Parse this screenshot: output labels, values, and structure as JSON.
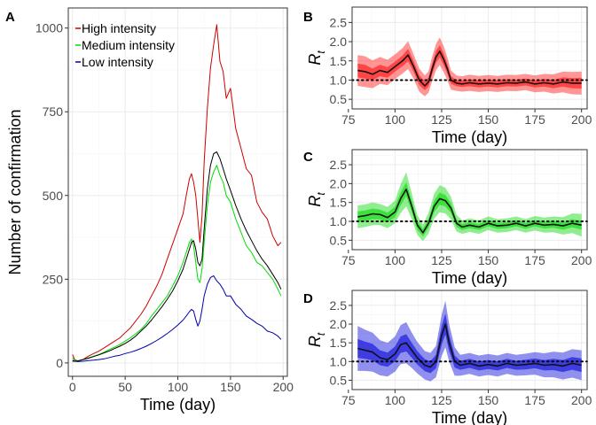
{
  "chart_data": [
    {
      "panel": "A",
      "type": "line",
      "xlabel": "Time (day)",
      "ylabel": "Number of confirmation",
      "xlim": [
        -4,
        204
      ],
      "ylim": [
        -40,
        1060
      ],
      "xticks": [
        0,
        50,
        100,
        150,
        200
      ],
      "yticks": [
        0,
        250,
        500,
        750,
        1000
      ],
      "grid": true,
      "legend_position": "top-left",
      "series": [
        {
          "name": "High intensity",
          "color": "#cc0000",
          "x": [
            0,
            2,
            5,
            10,
            15,
            20,
            25,
            30,
            35,
            40,
            45,
            50,
            55,
            60,
            65,
            70,
            75,
            80,
            85,
            90,
            95,
            100,
            105,
            108,
            111,
            113,
            115,
            117,
            119,
            121,
            123,
            125,
            128,
            131,
            134,
            137,
            140,
            143,
            146,
            150,
            155,
            160,
            165,
            170,
            175,
            180,
            185,
            190,
            195,
            198
          ],
          "values": [
            25,
            10,
            6,
            10,
            20,
            28,
            35,
            45,
            55,
            65,
            75,
            90,
            105,
            125,
            145,
            170,
            200,
            230,
            265,
            310,
            355,
            400,
            445,
            500,
            550,
            565,
            540,
            500,
            430,
            360,
            440,
            600,
            760,
            880,
            950,
            1010,
            900,
            870,
            790,
            820,
            700,
            640,
            580,
            560,
            480,
            450,
            430,
            380,
            350,
            360
          ]
        },
        {
          "name": "Medium intensity",
          "color": "#00dd00",
          "x": [
            0,
            2,
            5,
            10,
            15,
            20,
            25,
            30,
            35,
            40,
            45,
            50,
            55,
            60,
            65,
            70,
            75,
            80,
            85,
            90,
            95,
            100,
            105,
            108,
            111,
            113,
            115,
            117,
            119,
            121,
            123,
            125,
            128,
            131,
            134,
            137,
            140,
            143,
            146,
            150,
            155,
            160,
            165,
            170,
            175,
            180,
            185,
            190,
            195,
            198
          ],
          "values": [
            15,
            8,
            6,
            10,
            15,
            20,
            25,
            32,
            40,
            47,
            55,
            65,
            75,
            87,
            100,
            117,
            140,
            160,
            180,
            200,
            230,
            260,
            300,
            330,
            360,
            370,
            350,
            300,
            250,
            240,
            280,
            360,
            470,
            540,
            570,
            590,
            560,
            540,
            500,
            480,
            430,
            390,
            350,
            330,
            300,
            290,
            270,
            250,
            220,
            200
          ]
        },
        {
          "name": "Low intensity",
          "color": "#0000aa",
          "x": [
            0,
            2,
            5,
            10,
            15,
            20,
            25,
            30,
            35,
            40,
            45,
            50,
            55,
            60,
            65,
            70,
            75,
            80,
            85,
            90,
            95,
            100,
            105,
            108,
            111,
            113,
            115,
            117,
            119,
            121,
            123,
            125,
            128,
            131,
            134,
            137,
            140,
            143,
            146,
            150,
            155,
            160,
            165,
            170,
            175,
            180,
            185,
            190,
            195,
            198
          ],
          "values": [
            8,
            5,
            4,
            5,
            7,
            8,
            10,
            12,
            16,
            20,
            23,
            28,
            32,
            37,
            43,
            50,
            58,
            67,
            77,
            88,
            100,
            113,
            128,
            140,
            153,
            160,
            155,
            130,
            110,
            125,
            160,
            200,
            235,
            255,
            260,
            245,
            235,
            220,
            200,
            200,
            175,
            160,
            140,
            130,
            118,
            110,
            95,
            90,
            80,
            70
          ]
        },
        {
          "name": "",
          "color": "#000000",
          "x": [
            0,
            2,
            5,
            10,
            15,
            20,
            25,
            30,
            35,
            40,
            45,
            50,
            55,
            60,
            65,
            70,
            75,
            80,
            85,
            90,
            95,
            100,
            105,
            108,
            111,
            113,
            115,
            117,
            119,
            121,
            123,
            125,
            128,
            131,
            134,
            137,
            140,
            143,
            146,
            150,
            155,
            160,
            165,
            170,
            175,
            180,
            185,
            190,
            195,
            198
          ],
          "values": [
            5,
            5,
            6,
            10,
            14,
            19,
            24,
            30,
            36,
            43,
            50,
            58,
            68,
            80,
            95,
            110,
            128,
            148,
            168,
            190,
            215,
            245,
            280,
            310,
            340,
            360,
            365,
            340,
            300,
            290,
            310,
            400,
            520,
            590,
            625,
            630,
            610,
            580,
            550,
            515,
            470,
            430,
            395,
            365,
            335,
            310,
            290,
            265,
            240,
            220
          ]
        }
      ]
    },
    {
      "panel": "B",
      "type": "line",
      "xlabel": "Time (day)",
      "ylabel": "R_t",
      "xlim": [
        77,
        203
      ],
      "ylim": [
        0.25,
        2.9
      ],
      "xticks": [
        75,
        100,
        125,
        150,
        175,
        200
      ],
      "yticks": [
        0.5,
        1.0,
        1.5,
        2.0,
        2.5
      ],
      "reference_line": 1.0,
      "grid": true,
      "color": "#ff2b2b",
      "x": [
        80,
        84,
        88,
        92,
        96,
        100,
        104,
        107,
        110,
        113,
        116,
        118,
        120,
        122,
        124,
        126,
        128,
        130,
        133,
        136,
        140,
        145,
        150,
        155,
        160,
        165,
        170,
        175,
        180,
        185,
        190,
        195,
        200
      ],
      "mean": [
        1.25,
        1.22,
        1.15,
        1.25,
        1.2,
        1.35,
        1.5,
        1.65,
        1.35,
        1.0,
        0.85,
        0.95,
        1.3,
        1.6,
        1.75,
        1.55,
        1.3,
        1.0,
        0.92,
        0.9,
        0.93,
        0.9,
        0.92,
        0.9,
        0.93,
        0.92,
        0.95,
        0.9,
        0.93,
        0.9,
        0.95,
        0.92,
        0.92
      ],
      "inner_halfwidth": [
        0.18,
        0.18,
        0.15,
        0.15,
        0.14,
        0.13,
        0.14,
        0.16,
        0.14,
        0.13,
        0.11,
        0.12,
        0.14,
        0.15,
        0.16,
        0.15,
        0.13,
        0.1,
        0.08,
        0.08,
        0.09,
        0.09,
        0.09,
        0.09,
        0.09,
        0.09,
        0.09,
        0.09,
        0.1,
        0.11,
        0.12,
        0.13,
        0.14
      ],
      "outer_halfwidth": [
        0.4,
        0.4,
        0.36,
        0.35,
        0.33,
        0.32,
        0.33,
        0.36,
        0.32,
        0.3,
        0.27,
        0.28,
        0.32,
        0.34,
        0.36,
        0.34,
        0.3,
        0.25,
        0.2,
        0.2,
        0.21,
        0.21,
        0.21,
        0.21,
        0.21,
        0.21,
        0.21,
        0.22,
        0.23,
        0.25,
        0.27,
        0.29,
        0.3
      ]
    },
    {
      "panel": "C",
      "type": "line",
      "xlabel": "Time (day)",
      "ylabel": "R_t",
      "xlim": [
        77,
        203
      ],
      "ylim": [
        0.25,
        2.9
      ],
      "xticks": [
        75,
        100,
        125,
        150,
        175,
        200
      ],
      "yticks": [
        0.5,
        1.0,
        1.5,
        2.0,
        2.5
      ],
      "reference_line": 1.0,
      "grid": true,
      "color": "#22dd22",
      "x": [
        80,
        84,
        88,
        92,
        96,
        100,
        103,
        106,
        109,
        112,
        115,
        118,
        121,
        124,
        127,
        130,
        133,
        136,
        140,
        145,
        150,
        155,
        160,
        165,
        170,
        175,
        180,
        185,
        190,
        195,
        200
      ],
      "mean": [
        1.12,
        1.15,
        1.2,
        1.18,
        1.1,
        1.25,
        1.6,
        1.85,
        1.4,
        0.9,
        0.7,
        0.95,
        1.4,
        1.6,
        1.55,
        1.35,
        0.95,
        0.85,
        0.9,
        0.85,
        0.95,
        0.88,
        0.9,
        0.95,
        0.88,
        0.95,
        0.9,
        0.92,
        0.88,
        0.95,
        0.9
      ],
      "inner_halfwidth": [
        0.14,
        0.14,
        0.14,
        0.13,
        0.13,
        0.14,
        0.17,
        0.18,
        0.15,
        0.12,
        0.1,
        0.12,
        0.15,
        0.16,
        0.15,
        0.13,
        0.1,
        0.08,
        0.08,
        0.08,
        0.08,
        0.08,
        0.08,
        0.08,
        0.08,
        0.08,
        0.09,
        0.09,
        0.1,
        0.11,
        0.12
      ],
      "outer_halfwidth": [
        0.3,
        0.3,
        0.3,
        0.28,
        0.28,
        0.3,
        0.38,
        0.45,
        0.34,
        0.26,
        0.22,
        0.27,
        0.33,
        0.36,
        0.34,
        0.3,
        0.22,
        0.18,
        0.18,
        0.18,
        0.18,
        0.18,
        0.18,
        0.18,
        0.18,
        0.19,
        0.2,
        0.21,
        0.23,
        0.26,
        0.3
      ]
    },
    {
      "panel": "D",
      "type": "line",
      "xlabel": "Time (day)",
      "ylabel": "R_t",
      "xlim": [
        77,
        203
      ],
      "ylim": [
        0.25,
        2.9
      ],
      "xticks": [
        75,
        100,
        125,
        150,
        175,
        200
      ],
      "yticks": [
        0.5,
        1.0,
        1.5,
        2.0,
        2.5
      ],
      "reference_line": 1.0,
      "grid": true,
      "color": "#2222dd",
      "x": [
        80,
        84,
        88,
        92,
        96,
        100,
        103,
        106,
        109,
        112,
        116,
        119,
        122,
        125,
        127,
        129,
        132,
        135,
        140,
        145,
        150,
        155,
        160,
        165,
        170,
        175,
        180,
        185,
        190,
        195,
        200
      ],
      "mean": [
        1.35,
        1.3,
        1.25,
        1.1,
        1.05,
        1.2,
        1.45,
        1.5,
        1.3,
        1.1,
        0.9,
        0.85,
        1.0,
        1.7,
        2.0,
        1.5,
        1.0,
        0.9,
        0.95,
        0.88,
        0.92,
        0.88,
        0.95,
        0.9,
        0.92,
        0.95,
        0.9,
        0.92,
        0.88,
        0.95,
        0.9
      ],
      "inner_halfwidth": [
        0.25,
        0.23,
        0.22,
        0.2,
        0.19,
        0.2,
        0.22,
        0.23,
        0.2,
        0.18,
        0.16,
        0.16,
        0.18,
        0.25,
        0.28,
        0.22,
        0.16,
        0.12,
        0.12,
        0.12,
        0.12,
        0.12,
        0.12,
        0.12,
        0.13,
        0.13,
        0.14,
        0.15,
        0.16,
        0.17,
        0.18
      ],
      "outer_halfwidth": [
        0.6,
        0.55,
        0.52,
        0.47,
        0.45,
        0.47,
        0.52,
        0.55,
        0.47,
        0.42,
        0.38,
        0.38,
        0.42,
        0.55,
        0.62,
        0.5,
        0.38,
        0.28,
        0.28,
        0.28,
        0.28,
        0.28,
        0.28,
        0.28,
        0.29,
        0.3,
        0.32,
        0.34,
        0.36,
        0.38,
        0.4
      ]
    }
  ]
}
